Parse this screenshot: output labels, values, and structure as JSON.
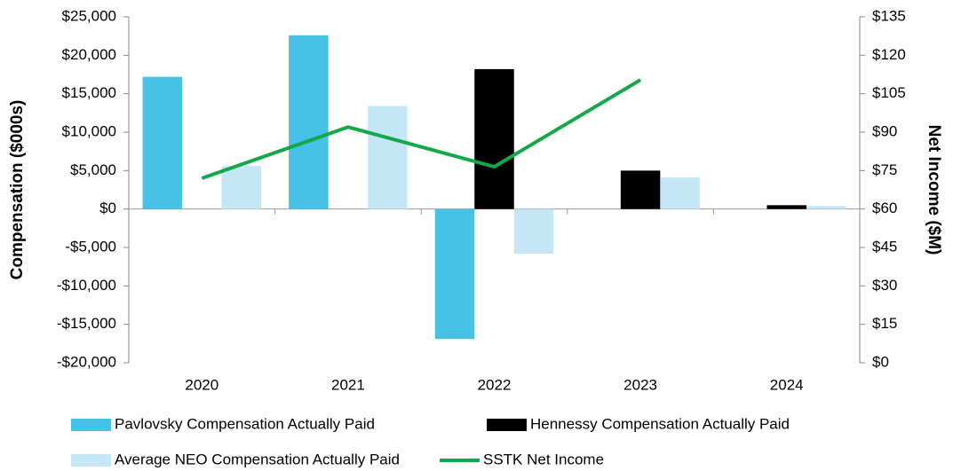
{
  "chart_data": {
    "type": "bar",
    "categories": [
      "2020",
      "2021",
      "2022",
      "2023",
      "2024"
    ],
    "ylabel": "Compensation ($000s)",
    "y2label": "Net Income ($M)",
    "ylim": [
      -20000,
      25000
    ],
    "yticks": [
      {
        "value": 25000,
        "label": "$25,000"
      },
      {
        "value": 20000,
        "label": "$20,000"
      },
      {
        "value": 15000,
        "label": "$15,000"
      },
      {
        "value": 10000,
        "label": "$10,000"
      },
      {
        "value": 5000,
        "label": "$5,000"
      },
      {
        "value": 0,
        "label": "$0"
      },
      {
        "value": -5000,
        "label": "-$5,000"
      },
      {
        "value": -10000,
        "label": "-$10,000"
      },
      {
        "value": -15000,
        "label": "-$15,000"
      },
      {
        "value": -20000,
        "label": "-$20,000"
      }
    ],
    "y2lim": [
      0,
      135
    ],
    "y2ticks": [
      {
        "value": 135,
        "label": "$135"
      },
      {
        "value": 120,
        "label": "$120"
      },
      {
        "value": 105,
        "label": "$105"
      },
      {
        "value": 90,
        "label": "$90"
      },
      {
        "value": 75,
        "label": "$75"
      },
      {
        "value": 60,
        "label": "$60"
      },
      {
        "value": 45,
        "label": "$45"
      },
      {
        "value": 30,
        "label": "$30"
      },
      {
        "value": 15,
        "label": "$15"
      },
      {
        "value": 0,
        "label": "$0"
      }
    ],
    "series": [
      {
        "name": "Pavlovsky Compensation Actually Paid",
        "color": "#47c1e6",
        "values": [
          17200,
          22600,
          -16900,
          null,
          null
        ]
      },
      {
        "name": "Hennessy Compensation Actually Paid",
        "color": "#000000",
        "values": [
          null,
          null,
          18200,
          5000,
          500
        ]
      },
      {
        "name": "Average NEO Compensation Actually Paid",
        "color": "#c5e6f7",
        "values": [
          5600,
          13400,
          -5800,
          4100,
          400
        ]
      },
      {
        "name": "SSTK Net Income",
        "color": "#13a84a",
        "type": "line",
        "axis": "y2",
        "values": [
          72,
          92,
          76.5,
          110.4,
          null
        ]
      }
    ]
  }
}
